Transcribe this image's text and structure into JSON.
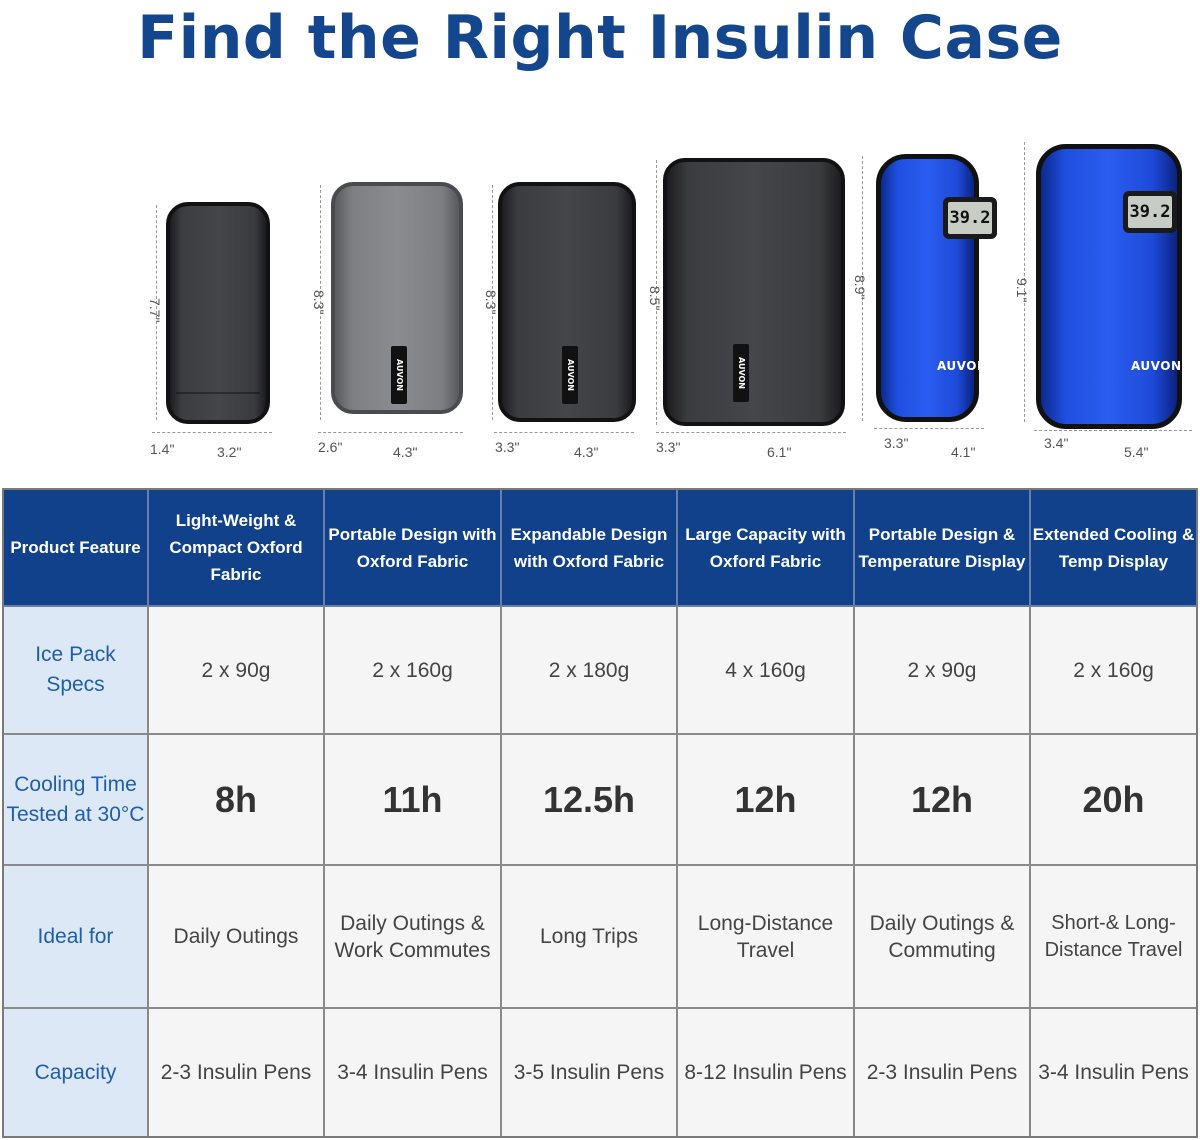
{
  "title": "Find the Right Insulin Case",
  "products": [
    {
      "height": "7.7\"",
      "depth": "1.4\"",
      "width": "3.2\"",
      "style": "fabric-dark"
    },
    {
      "height": "8.3\"",
      "depth": "2.6\"",
      "width": "4.3\"",
      "style": "fabric-grey",
      "tag": "AUVON"
    },
    {
      "height": "8.3\"",
      "depth": "3.3\"",
      "width": "4.3\"",
      "style": "fabric-dark",
      "tag": "AUVON"
    },
    {
      "height": "8.5\"",
      "depth": "3.3\"",
      "width": "6.1\"",
      "style": "fabric-dark",
      "tag": "AUVON"
    },
    {
      "height": "8.9\"",
      "depth": "3.3\"",
      "width": "4.1\"",
      "style": "blue",
      "display": "39.2",
      "brand": "AUVON"
    },
    {
      "height": "9.1\"",
      "depth": "3.4\"",
      "width": "5.4\"",
      "style": "blue",
      "display": "39.2",
      "brand": "AUVON"
    }
  ],
  "table": {
    "header": {
      "label": "Product Feature",
      "columns": [
        "Light-Weight & Compact Oxford Fabric",
        "Portable Design with Oxford Fabric",
        "Expandable Design with Oxford Fabric",
        "Large Capacity with Oxford Fabric",
        "Portable Design & Temperature Display",
        "Extended Cooling & Temp Display"
      ]
    },
    "rows": [
      {
        "label": "Ice Pack Specs",
        "values": [
          "2 x 90g",
          "2 x 160g",
          "2 x 180g",
          "4 x 160g",
          "2 x 90g",
          "2 x 160g"
        ]
      },
      {
        "label": "Cooling Time Tested at 30°C",
        "values": [
          "8h",
          "11h",
          "12.5h",
          "12h",
          "12h",
          "20h"
        ]
      },
      {
        "label": "Ideal for",
        "values": [
          "Daily Outings",
          "Daily Outings & Work Commutes",
          "Long Trips",
          "Long-Distance Travel",
          "Daily Outings & Commuting",
          "Short-& Long-Distance Travel"
        ]
      },
      {
        "label": "Capacity",
        "values": [
          "2-3 Insulin Pens",
          "3-4 Insulin Pens",
          "3-5 Insulin Pens",
          "8-12 Insulin Pens",
          "2-3 Insulin Pens",
          "3-4 Insulin Pens"
        ]
      }
    ]
  },
  "colors": {
    "title": "#13468d",
    "header_bg": "#12418b",
    "row_label_bg": "#dce8f6",
    "row_label_text": "#1f5eaa",
    "cell_bg": "#f5f5f5"
  }
}
